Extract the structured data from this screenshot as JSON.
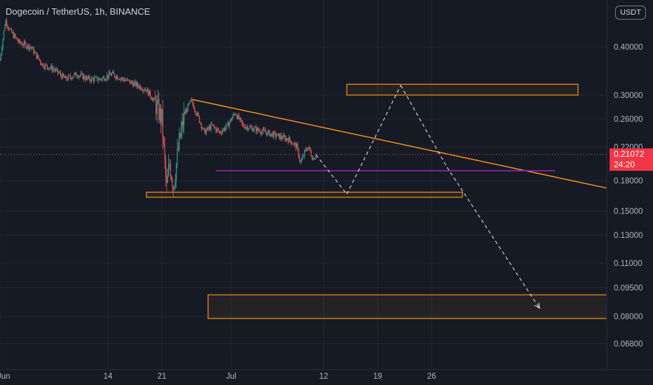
{
  "header": {
    "symbol_title": "Dogecoin / TetherUS, 1h, BINANCE",
    "currency_badge": "USDT"
  },
  "price_label": {
    "price": "0.21072",
    "countdown": "24:20"
  },
  "colors": {
    "background": "#161a25",
    "grid": "#232733",
    "candle_up": "#26a69a",
    "candle_down": "#ef5350",
    "annotation": "#f7931a",
    "support_line": "#9c27b0",
    "projection": "#ffffff",
    "last_price": "#f23645"
  },
  "chart_data": {
    "type": "candlestick",
    "title": "Dogecoin / TetherUS, 1h, BINANCE",
    "y_scale": "log",
    "y_ticks": [
      0.4,
      0.3,
      0.26,
      0.22,
      0.18,
      0.15,
      0.13,
      0.11,
      0.095,
      0.08,
      0.068
    ],
    "y_tick_labels": [
      "0.40000",
      "0.30000",
      "0.26000",
      "0.22000",
      "0.18000",
      "0.15000",
      "0.13000",
      "0.11000",
      "0.09500",
      "0.08000",
      "0.06800"
    ],
    "x_tick_labels": [
      "Jun",
      "14",
      "21",
      "Jul",
      "12",
      "19",
      "26"
    ],
    "x_ticks": [
      0,
      14,
      21,
      30,
      42,
      49,
      56
    ],
    "x_unit": "days from Jun 7",
    "last_price": 0.21072,
    "price_path": [
      [
        0,
        0.37
      ],
      [
        0.7,
        0.47
      ],
      [
        1.3,
        0.44
      ],
      [
        2.5,
        0.41
      ],
      [
        4,
        0.4
      ],
      [
        5.5,
        0.36
      ],
      [
        7,
        0.35
      ],
      [
        8.5,
        0.33
      ],
      [
        10,
        0.34
      ],
      [
        11.5,
        0.33
      ],
      [
        13,
        0.33
      ],
      [
        14.5,
        0.34
      ],
      [
        16,
        0.33
      ],
      [
        17.5,
        0.32
      ],
      [
        19,
        0.31
      ],
      [
        20,
        0.29
      ],
      [
        21,
        0.26
      ],
      [
        21.6,
        0.17
      ],
      [
        22,
        0.2
      ],
      [
        22.5,
        0.175
      ],
      [
        23.3,
        0.23
      ],
      [
        24,
        0.27
      ],
      [
        24.8,
        0.29
      ],
      [
        25.5,
        0.27
      ],
      [
        26.5,
        0.24
      ],
      [
        27.5,
        0.25
      ],
      [
        28.5,
        0.24
      ],
      [
        29.5,
        0.25
      ],
      [
        30.5,
        0.27
      ],
      [
        31.5,
        0.25
      ],
      [
        33,
        0.245
      ],
      [
        34.5,
        0.24
      ],
      [
        36,
        0.235
      ],
      [
        37.5,
        0.23
      ],
      [
        38.5,
        0.22
      ],
      [
        39,
        0.2
      ],
      [
        39.6,
        0.215
      ],
      [
        40,
        0.22
      ],
      [
        40.6,
        0.205
      ],
      [
        41,
        0.21072
      ]
    ],
    "zones": [
      {
        "name": "upper-target-zone",
        "x_start": 45,
        "x_end": 75,
        "y_low": 0.3,
        "y_high": 0.32
      },
      {
        "name": "support-zone",
        "x_start": 19,
        "x_end": 60,
        "y_low": 0.163,
        "y_high": 0.168
      },
      {
        "name": "lower-target-zone",
        "x_start": 27,
        "x_end": 80,
        "y_low": 0.079,
        "y_high": 0.091
      }
    ],
    "lines": [
      {
        "name": "descending-trendline",
        "points": [
          [
            25,
            0.292
          ],
          [
            80,
            0.17
          ]
        ]
      },
      {
        "name": "support-line",
        "points": [
          [
            28,
            0.191
          ],
          [
            72,
            0.191
          ]
        ]
      }
    ],
    "projection": [
      [
        41,
        0.21
      ],
      [
        45,
        0.166
      ],
      [
        52,
        0.318
      ],
      [
        58,
        0.195
      ],
      [
        70,
        0.084
      ]
    ]
  }
}
